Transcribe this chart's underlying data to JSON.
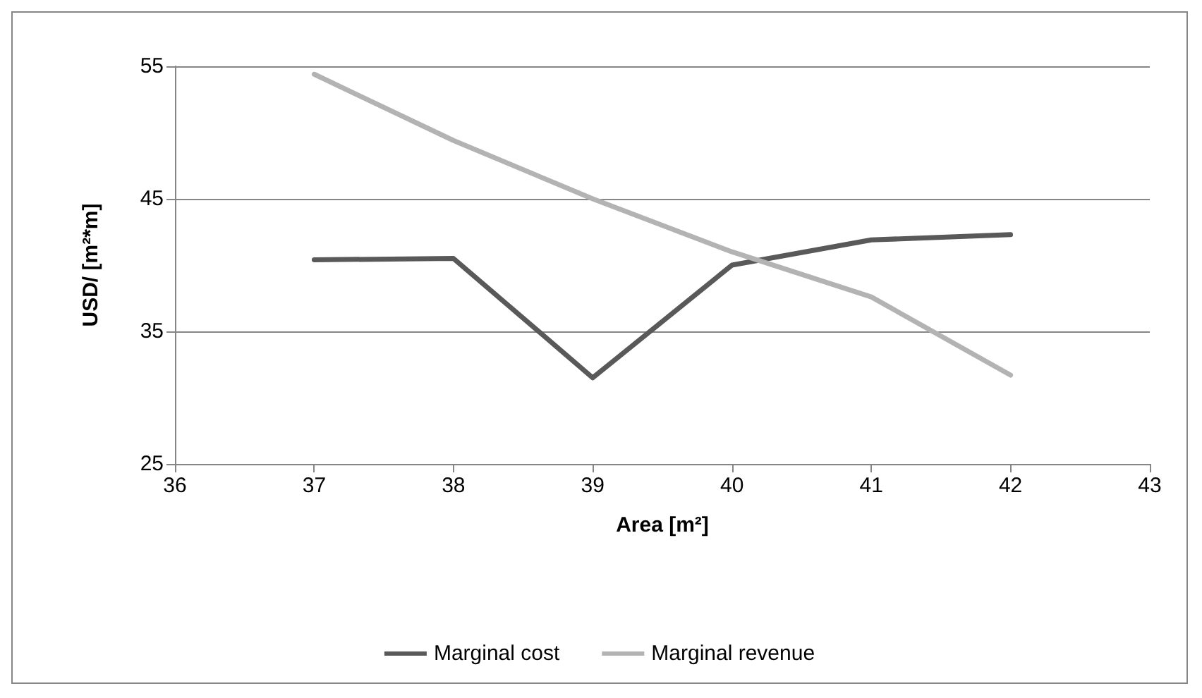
{
  "chart_data": {
    "type": "line",
    "xlabel": "Area [m²]",
    "ylabel": "USD/ [m²*m]",
    "x": [
      37,
      38,
      39,
      40,
      41,
      42
    ],
    "series": [
      {
        "name": "Marginal cost",
        "color": "#595959",
        "values": [
          40.4,
          40.5,
          31.5,
          40.0,
          41.9,
          42.3
        ]
      },
      {
        "name": "Marginal revenue",
        "color": "#b3b3b3",
        "values": [
          54.4,
          49.4,
          45.0,
          41.0,
          37.6,
          31.7
        ]
      }
    ],
    "xlim": [
      36,
      43
    ],
    "xticks": [
      36,
      37,
      38,
      39,
      40,
      41,
      42,
      43
    ],
    "ylim": [
      25,
      55
    ],
    "yticks": [
      25,
      35,
      45,
      55
    ],
    "grid": "y",
    "legend": "bottom",
    "marker": "none",
    "line_style": "solid"
  }
}
